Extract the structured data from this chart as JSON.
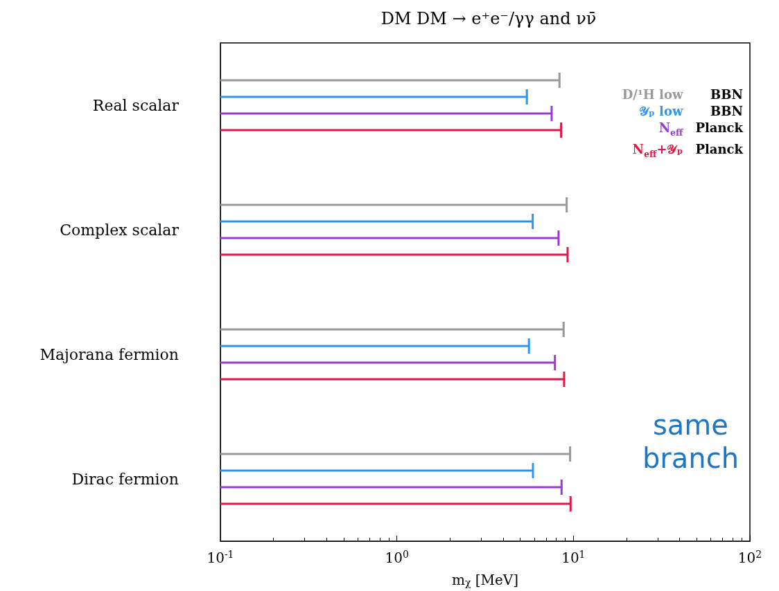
{
  "chart_data": {
    "type": "bar",
    "orientation": "horizontal",
    "title": "DM DM → e⁺e⁻/γγ and νν̄",
    "xlabel": "m$_{χ}$ [MeV]",
    "categories": [
      "Real scalar",
      "Complex scalar",
      "Majorana fermion",
      "Dirac fermion"
    ],
    "series": [
      {
        "name": "D/¹H low BBN",
        "color": "#999999",
        "values": [
          8.34,
          9.16,
          8.8,
          9.58
        ]
      },
      {
        "name": "𝒴ₚ low BBN",
        "color": "#2e95f5",
        "values": [
          5.45,
          5.88,
          5.6,
          5.9
        ]
      },
      {
        "name": "N$_{eff}$ Planck",
        "color": "#9a3ad6",
        "values": [
          7.53,
          8.24,
          7.86,
          8.57
        ]
      },
      {
        "name": "N$_{eff}$+𝒴ₚ Planck",
        "color": "#e0174a",
        "values": [
          8.52,
          9.27,
          8.86,
          9.64
        ]
      }
    ],
    "log": "x",
    "xlim": [
      0.1,
      100
    ],
    "xticks": [
      {
        "value": 0.1,
        "label": "10$^{-1}$"
      },
      {
        "value": 1,
        "label": "10$^{0}$"
      },
      {
        "value": 10,
        "label": "10$^{1}$"
      },
      {
        "value": 100,
        "label": "10$^{2}$"
      }
    ],
    "grid": false,
    "annotations": [
      "same branch"
    ]
  }
}
